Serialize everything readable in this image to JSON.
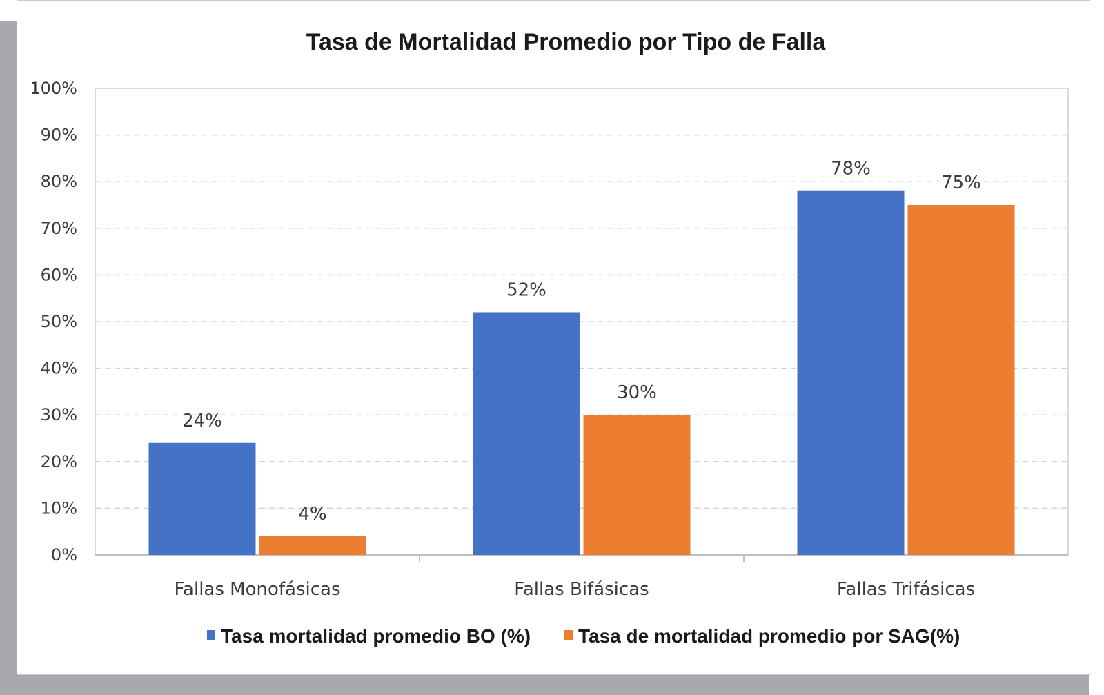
{
  "chart_data": {
    "type": "bar",
    "title": "Tasa de Mortalidad Promedio por Tipo de Falla",
    "xlabel": "",
    "ylabel": "",
    "ylim": [
      0,
      100
    ],
    "y_ticks": [
      "0%",
      "10%",
      "20%",
      "30%",
      "40%",
      "50%",
      "60%",
      "70%",
      "80%",
      "90%",
      "100%"
    ],
    "categories": [
      "Fallas Monofásicas",
      "Fallas Bifásicas",
      "Fallas Trifásicas"
    ],
    "series": [
      {
        "name": "Tasa mortalidad promedio BO (%)",
        "values": [
          24,
          52,
          78
        ],
        "labels": [
          "24%",
          "52%",
          "78%"
        ],
        "color": "#4472c4"
      },
      {
        "name": "Tasa de mortalidad promedio por SAG(%)",
        "values": [
          4,
          30,
          75
        ],
        "labels": [
          "4%",
          "30%",
          "75%"
        ],
        "color": "#ed7d31"
      }
    ],
    "grid": true,
    "legend_position": "bottom"
  }
}
